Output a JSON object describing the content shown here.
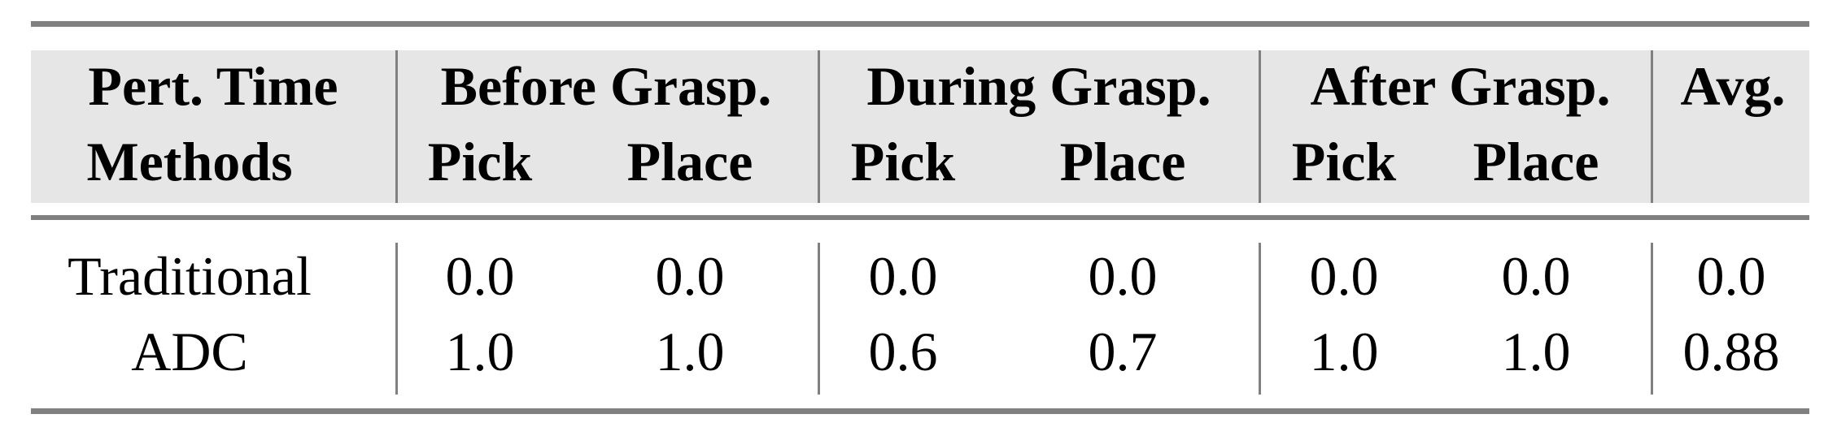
{
  "header": {
    "row1": {
      "label": "Pert. Time",
      "groups": [
        "Before Grasp.",
        "During Grasp.",
        "After Grasp.",
        "Avg."
      ]
    },
    "row2": {
      "label": "Methods",
      "subcols": [
        "Pick",
        "Place",
        "Pick",
        "Place",
        "Pick",
        "Place"
      ]
    }
  },
  "rows": [
    {
      "method": "Traditional",
      "values": [
        "0.0",
        "0.0",
        "0.0",
        "0.0",
        "0.0",
        "0.0",
        "0.0"
      ]
    },
    {
      "method": "ADC",
      "values": [
        "1.0",
        "1.0",
        "0.6",
        "0.7",
        "1.0",
        "1.0",
        "0.88"
      ]
    }
  ]
}
